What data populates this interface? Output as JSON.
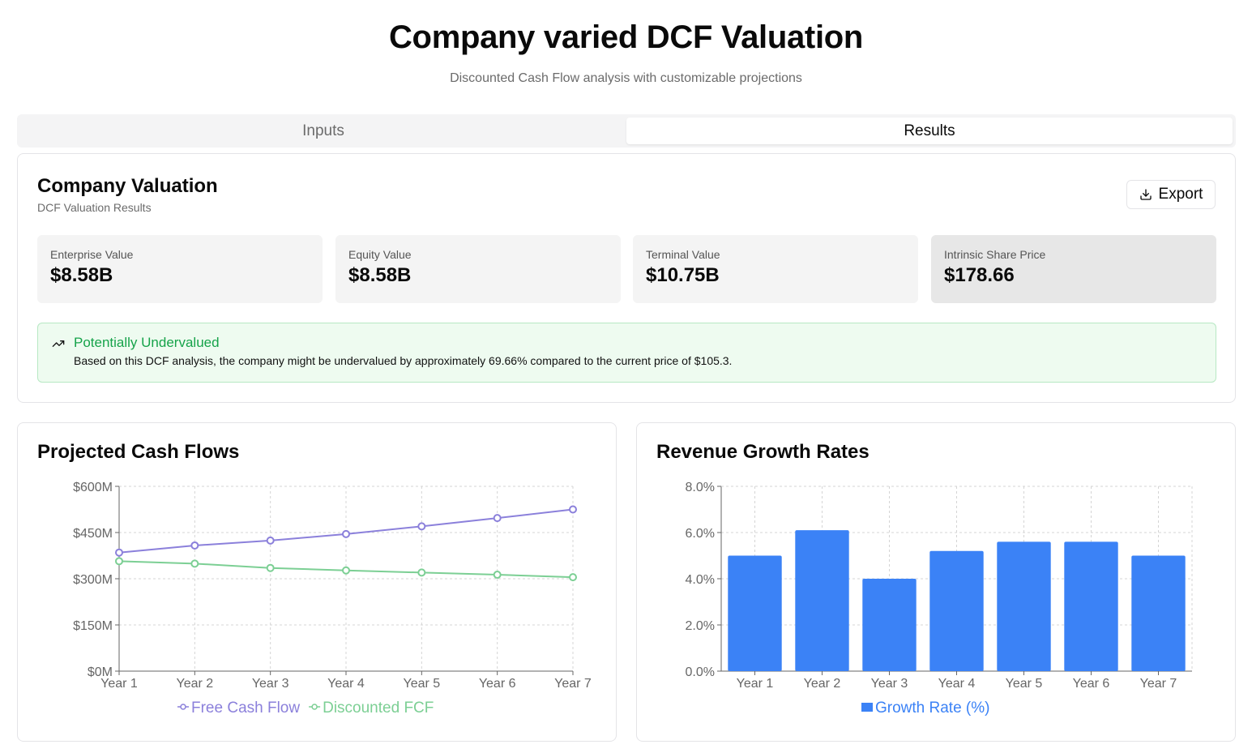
{
  "header": {
    "title": "Company varied DCF Valuation",
    "subtitle": "Discounted Cash Flow analysis with customizable projections"
  },
  "tabs": [
    {
      "label": "Inputs",
      "active": false
    },
    {
      "label": "Results",
      "active": true
    }
  ],
  "valuation": {
    "title": "Company Valuation",
    "description": "DCF Valuation Results",
    "export_label": "Export",
    "export_icon": "download-icon",
    "metrics": [
      {
        "label": "Enterprise Value",
        "value": "$8.58B"
      },
      {
        "label": "Equity Value",
        "value": "$8.58B"
      },
      {
        "label": "Terminal Value",
        "value": "$10.75B"
      },
      {
        "label": "Intrinsic Share Price",
        "value": "$178.66"
      }
    ],
    "alert": {
      "icon": "trending-up-icon",
      "title": "Potentially Undervalued",
      "text": "Based on this DCF analysis, the company might be undervalued by approximately 69.66% compared to the current price of $105.3."
    }
  },
  "colors": {
    "fcf": "#8b80db",
    "discounted": "#7ccf94",
    "bar": "#3b82f6",
    "alert_green": "#16a34a"
  },
  "cash_flow_chart": {
    "title": "Projected Cash Flows",
    "chart_data": {
      "type": "line",
      "categories": [
        "Year 1",
        "Year 2",
        "Year 3",
        "Year 4",
        "Year 5",
        "Year 6",
        "Year 7"
      ],
      "series": [
        {
          "name": "Free Cash Flow",
          "values": [
            385,
            408,
            424,
            445,
            470,
            497,
            525
          ]
        },
        {
          "name": "Discounted FCF",
          "values": [
            357,
            349,
            335,
            327,
            320,
            313,
            305
          ]
        }
      ],
      "ylim": [
        0,
        600
      ],
      "yticks": [
        0,
        150,
        300,
        450,
        600
      ],
      "ytick_labels": [
        "$0M",
        "$150M",
        "$300M",
        "$450M",
        "$600M"
      ],
      "grid": true,
      "legend": "bottom"
    }
  },
  "growth_chart": {
    "title": "Revenue Growth Rates",
    "chart_data": {
      "type": "bar",
      "categories": [
        "Year 1",
        "Year 2",
        "Year 3",
        "Year 4",
        "Year 5",
        "Year 6",
        "Year 7"
      ],
      "series": [
        {
          "name": "Growth Rate (%)",
          "values": [
            5.0,
            6.1,
            4.0,
            5.2,
            5.6,
            5.6,
            5.0
          ]
        }
      ],
      "ylim": [
        0,
        8
      ],
      "yticks": [
        0,
        2,
        4,
        6,
        8
      ],
      "ytick_labels": [
        "0.0%",
        "2.0%",
        "4.0%",
        "6.0%",
        "8.0%"
      ],
      "grid": true,
      "legend": "bottom"
    }
  }
}
